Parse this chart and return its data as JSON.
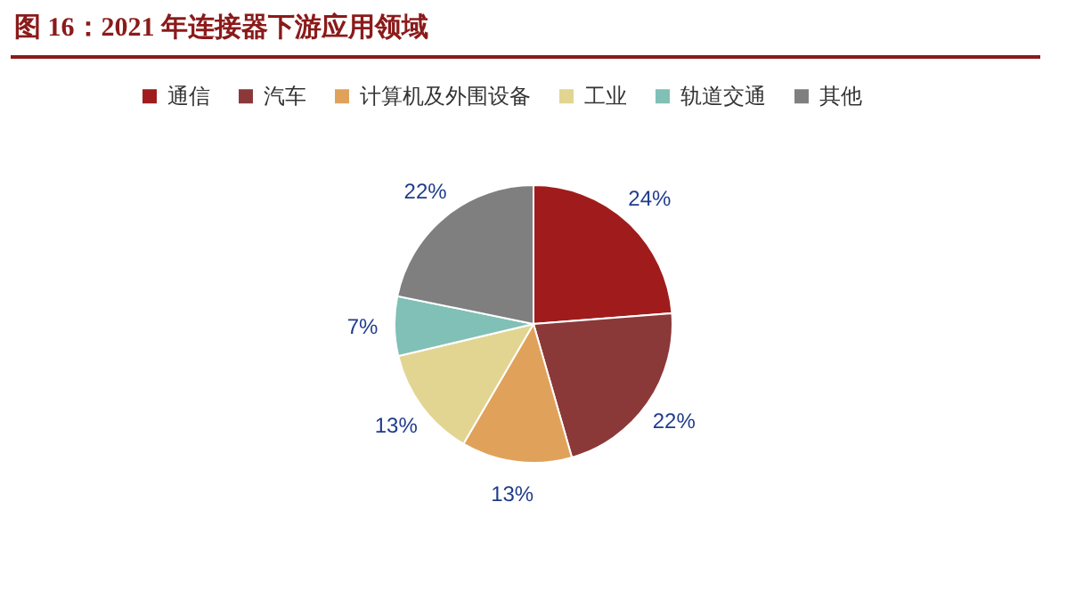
{
  "chart_data": {
    "type": "pie",
    "title": "图 16：2021 年连接器下游应用领域",
    "categories": [
      "通信",
      "汽车",
      "计算机及外围设备",
      "工业",
      "轨道交通",
      "其他"
    ],
    "values": [
      24,
      22,
      13,
      13,
      7,
      22
    ],
    "colors": [
      "#a01c1c",
      "#8b3838",
      "#e0a25a",
      "#e2d592",
      "#80c0b6",
      "#7f7f7f"
    ],
    "value_labels": [
      "24%",
      "22%",
      "13%",
      "13%",
      "7%",
      "22%"
    ],
    "legend": "top"
  }
}
